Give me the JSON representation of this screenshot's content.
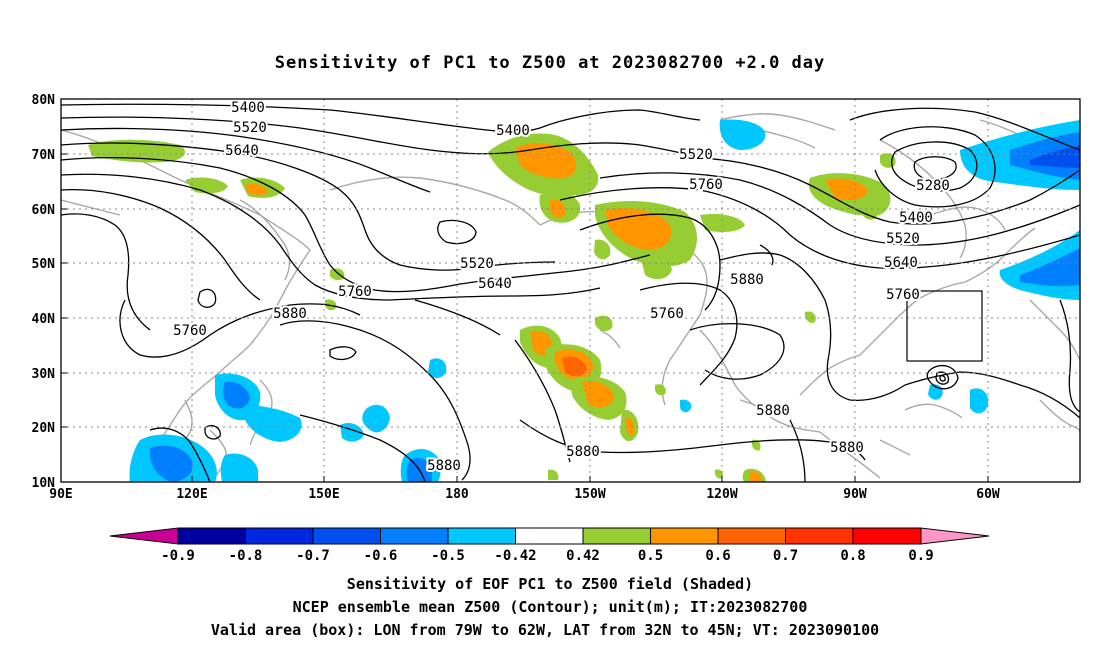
{
  "title": "Sensitivity of PC1 to Z500 at 2023082700 +2.0 day",
  "map": {
    "lat_labels": [
      "80N",
      "70N",
      "60N",
      "50N",
      "40N",
      "30N",
      "20N",
      "10N"
    ],
    "lon_labels": [
      "90E",
      "120E",
      "150E",
      "180",
      "150W",
      "120W",
      "90W",
      "60W"
    ],
    "contour_labels": [
      {
        "value": "5400",
        "loc": "50-north"
      },
      {
        "value": "5520",
        "loc": "west"
      },
      {
        "value": "5640",
        "loc": "west"
      },
      {
        "value": "5400",
        "loc": "pacific"
      },
      {
        "value": "5520",
        "loc": "alaska"
      },
      {
        "value": "5760",
        "loc": "canada"
      },
      {
        "value": "5280",
        "loc": "hudson"
      },
      {
        "value": "5400",
        "loc": "labrador"
      },
      {
        "value": "5520",
        "loc": "labrador"
      },
      {
        "value": "5640",
        "loc": "atlantic"
      },
      {
        "value": "5760",
        "loc": "atlantic"
      },
      {
        "value": "5520",
        "loc": "low-center"
      },
      {
        "value": "5640",
        "loc": "pacific-mid"
      },
      {
        "value": "5760",
        "loc": "pacific-mid"
      },
      {
        "value": "5880",
        "loc": "rockies"
      },
      {
        "value": "5760",
        "loc": "gulf-of-alaska"
      },
      {
        "value": "5760",
        "loc": "asia"
      },
      {
        "value": "5880",
        "loc": "asia"
      },
      {
        "value": "5880",
        "loc": "central-pacific"
      },
      {
        "value": "5880",
        "loc": "hawaii"
      },
      {
        "value": "5880",
        "loc": "mexico"
      },
      {
        "value": "5880",
        "loc": "caribbean"
      }
    ]
  },
  "colorbar": {
    "labels": [
      "-0.9",
      "-0.8",
      "-0.7",
      "-0.6",
      "-0.5",
      "-0.42",
      "0.42",
      "0.5",
      "0.6",
      "0.7",
      "0.8",
      "0.9"
    ],
    "colors": [
      "#0000a0",
      "#0028e0",
      "#0050f0",
      "#0080ff",
      "#00c8ff",
      "#ffffff",
      "#96cd32",
      "#ff9600",
      "#ff6400",
      "#ff3200",
      "#ff0000"
    ],
    "low_extreme": "#c80096",
    "high_extreme": "#ff96c8"
  },
  "captions": {
    "line1": "Sensitivity of EOF PC1 to Z500 field (Shaded)",
    "line2": "NCEP ensemble mean Z500 (Contour); unit(m); IT:2023082700",
    "line3": "Valid area (box): LON from 79W to 62W, LAT from 32N to 45N; VT: 2023090100"
  }
}
